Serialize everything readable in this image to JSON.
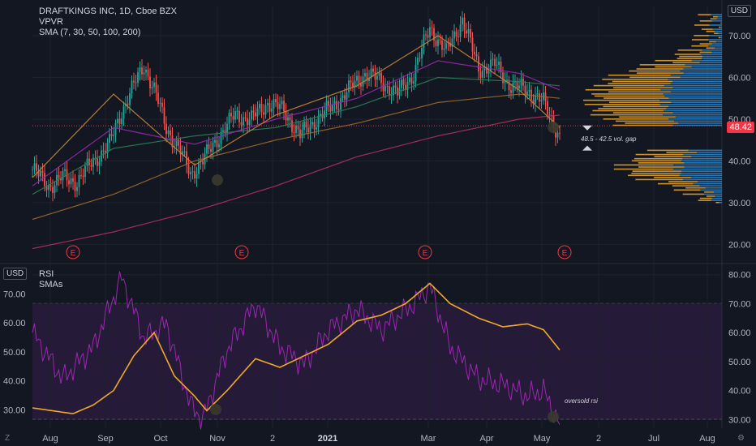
{
  "header": {
    "title": "DRAFTKINGS INC, 1D, Cboe BZX",
    "indicator_1": "VPVR",
    "indicator_2": "SMA (7, 30, 50, 100, 200)",
    "currency": "USD",
    "last_price": "48.42"
  },
  "lower_pane": {
    "title": "RSI",
    "subtitle": "SMAs",
    "currency": "USD",
    "note": "oversold rsi"
  },
  "annotations": {
    "gap_label": "48.5 - 42.5 vol. gap",
    "earnings_marker": "E"
  },
  "corners": {
    "bottom_left": "Z",
    "bottom_right": "⚙"
  },
  "colors": {
    "background": "#131722",
    "up": "#26a69a",
    "down": "#ef5350",
    "sma7": "#c3873b",
    "sma30": "#9c27b0",
    "sma50": "#2e7d57",
    "sma100": "#a0692e",
    "sma200": "#b03060",
    "vpvr_up": "#f0a92a",
    "vpvr_down": "#2a8ad1",
    "rsi": "#9c27b0",
    "rsi_sma": "#f0a92a",
    "rsi_band": "#2a1b3d"
  },
  "chart_data": [
    {
      "type": "candlestick",
      "x_ticks": [
        "Aug",
        "Sep",
        "Oct",
        "Nov",
        "2",
        "2021",
        "Mar",
        "Apr",
        "May",
        "2",
        "Jul",
        "Aug"
      ],
      "y_ticks": [
        20,
        30,
        40,
        50,
        60,
        70
      ],
      "ylim": [
        16,
        77
      ],
      "last_price": 48.42,
      "gap": [
        42.5,
        48.5
      ],
      "earnings_dates": [
        "Aug",
        "Nov",
        "Feb",
        "May"
      ],
      "price_path": [
        [
          0,
          38
        ],
        [
          8,
          34
        ],
        [
          15,
          36
        ],
        [
          22,
          35
        ],
        [
          30,
          40
        ],
        [
          38,
          44
        ],
        [
          44,
          52
        ],
        [
          50,
          58
        ],
        [
          55,
          63
        ],
        [
          60,
          57
        ],
        [
          66,
          48
        ],
        [
          72,
          43
        ],
        [
          78,
          37
        ],
        [
          84,
          40
        ],
        [
          92,
          46
        ],
        [
          100,
          51
        ],
        [
          108,
          50
        ],
        [
          116,
          54
        ],
        [
          124,
          52
        ],
        [
          132,
          46
        ],
        [
          140,
          50
        ],
        [
          148,
          53
        ],
        [
          156,
          57
        ],
        [
          164,
          61
        ],
        [
          172,
          59
        ],
        [
          180,
          56
        ],
        [
          188,
          61
        ],
        [
          196,
          72
        ],
        [
          204,
          66
        ],
        [
          212,
          74
        ],
        [
          220,
          62
        ],
        [
          228,
          63
        ],
        [
          236,
          58
        ],
        [
          244,
          57
        ],
        [
          252,
          54
        ],
        [
          260,
          46
        ]
      ],
      "sma_200": [
        [
          0,
          19
        ],
        [
          40,
          23
        ],
        [
          80,
          28
        ],
        [
          120,
          34
        ],
        [
          160,
          41
        ],
        [
          200,
          46
        ],
        [
          240,
          50
        ],
        [
          260,
          51
        ]
      ],
      "sma_100": [
        [
          0,
          26
        ],
        [
          40,
          32
        ],
        [
          80,
          40
        ],
        [
          120,
          45
        ],
        [
          160,
          49
        ],
        [
          200,
          54
        ],
        [
          240,
          56
        ],
        [
          260,
          55
        ]
      ],
      "sma_50": [
        [
          0,
          32
        ],
        [
          40,
          43
        ],
        [
          80,
          46
        ],
        [
          120,
          48
        ],
        [
          160,
          53
        ],
        [
          200,
          60
        ],
        [
          240,
          59
        ],
        [
          260,
          58
        ]
      ],
      "sma_30": [
        [
          0,
          34
        ],
        [
          40,
          48
        ],
        [
          80,
          44
        ],
        [
          120,
          50
        ],
        [
          160,
          55
        ],
        [
          200,
          64
        ],
        [
          240,
          61
        ],
        [
          260,
          57
        ]
      ],
      "sma_7": [
        [
          0,
          36
        ],
        [
          40,
          56
        ],
        [
          80,
          39
        ],
        [
          120,
          51
        ],
        [
          160,
          58
        ],
        [
          200,
          70
        ],
        [
          240,
          57
        ],
        [
          260,
          48
        ]
      ]
    },
    {
      "type": "line",
      "series_names": [
        "RSI",
        "SMAs"
      ],
      "y_ticks": [
        30,
        40,
        50,
        60,
        70,
        80
      ],
      "ylim": [
        27,
        83
      ],
      "upper_band": 70,
      "lower_band": 30,
      "rsi": [
        [
          0,
          60
        ],
        [
          15,
          44
        ],
        [
          30,
          55
        ],
        [
          44,
          79
        ],
        [
          55,
          58
        ],
        [
          66,
          63
        ],
        [
          78,
          35
        ],
        [
          84,
          30
        ],
        [
          96,
          54
        ],
        [
          110,
          70
        ],
        [
          122,
          55
        ],
        [
          134,
          49
        ],
        [
          146,
          61
        ],
        [
          160,
          68
        ],
        [
          172,
          61
        ],
        [
          188,
          70
        ],
        [
          196,
          76
        ],
        [
          206,
          55
        ],
        [
          220,
          44
        ],
        [
          232,
          42
        ],
        [
          244,
          38
        ],
        [
          252,
          40
        ],
        [
          260,
          28
        ]
      ],
      "rsi_sma": [
        [
          0,
          34
        ],
        [
          10,
          33
        ],
        [
          20,
          32
        ],
        [
          30,
          35
        ],
        [
          40,
          40
        ],
        [
          50,
          52
        ],
        [
          60,
          60
        ],
        [
          70,
          45
        ],
        [
          80,
          38
        ],
        [
          86,
          33
        ],
        [
          96,
          40
        ],
        [
          110,
          51
        ],
        [
          122,
          48
        ],
        [
          134,
          52
        ],
        [
          146,
          56
        ],
        [
          160,
          64
        ],
        [
          172,
          66
        ],
        [
          184,
          70
        ],
        [
          196,
          77
        ],
        [
          206,
          70
        ],
        [
          220,
          65
        ],
        [
          232,
          62
        ],
        [
          244,
          63
        ],
        [
          252,
          61
        ],
        [
          260,
          54
        ]
      ]
    }
  ]
}
